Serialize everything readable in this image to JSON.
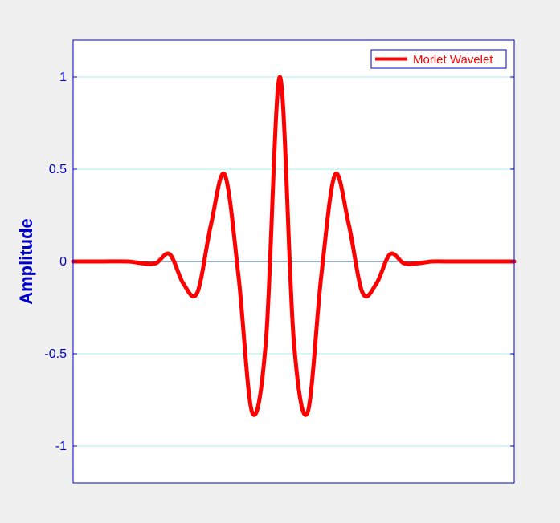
{
  "chart_data": {
    "type": "line",
    "title": "",
    "xlabel": "",
    "ylabel": "Amplitude",
    "xlim": [
      -8,
      8
    ],
    "ylim": [
      -1.2,
      1.2
    ],
    "yticks": [
      -1,
      -0.5,
      0,
      0.5,
      1
    ],
    "ytick_labels": [
      "-1",
      "-0.5",
      "0",
      "0.5",
      "1"
    ],
    "x_tick_labels_visible": false,
    "grid": "horizontal",
    "zero_line": true,
    "legend_position": "top-right",
    "series": [
      {
        "name": "Morlet Wavelet",
        "color": "#ff0000",
        "x": [
          -8.0,
          -7.0,
          -6.0,
          -5.5,
          -5.0,
          -4.5,
          -4.0,
          -3.5,
          -3.0,
          -2.5,
          -2.0,
          -1.5,
          -1.0,
          -0.5,
          0.0,
          0.5,
          1.0,
          1.5,
          2.0,
          2.5,
          3.0,
          3.5,
          4.0,
          4.5,
          5.0,
          5.5,
          6.0,
          7.0,
          8.0
        ],
        "y": [
          0.0,
          0.0,
          0.0,
          -0.01,
          -0.01,
          0.04,
          -0.12,
          -0.17,
          0.2,
          0.47,
          -0.08,
          -0.82,
          -0.42,
          1.0,
          -0.42,
          -0.82,
          -0.08,
          0.47,
          0.2,
          -0.17,
          -0.12,
          0.04,
          -0.01,
          -0.01,
          0.0,
          0.0,
          0.0,
          0.0,
          0.0
        ]
      }
    ]
  },
  "colors": {
    "axes": "#0000cc",
    "grid": "#aaeeee",
    "zero_line": "#336699",
    "background": "#f0f0f0",
    "plot_area": "#ffffff"
  }
}
